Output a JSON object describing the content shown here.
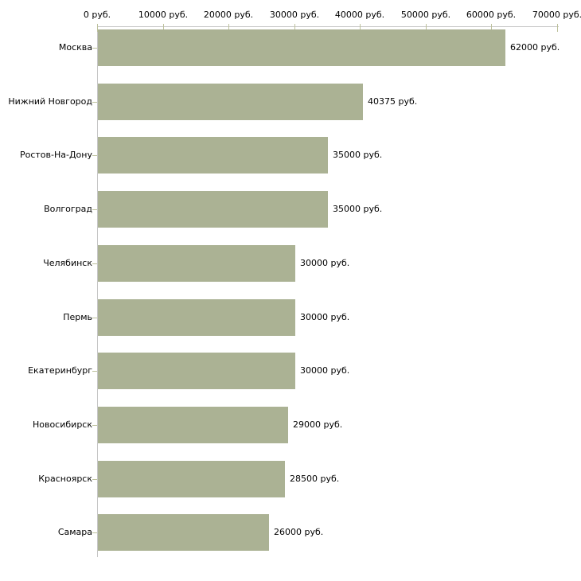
{
  "chart_data": {
    "type": "bar",
    "orientation": "horizontal",
    "categories": [
      "Москва",
      "Нижний Новгород",
      "Ростов-На-Дону",
      "Волгоград",
      "Челябинск",
      "Пермь",
      "Екатеринбург",
      "Новосибирск",
      "Красноярск",
      "Самара"
    ],
    "values": [
      62000,
      40375,
      35000,
      35000,
      30000,
      30000,
      30000,
      29000,
      28500,
      26000
    ],
    "value_labels": [
      "62000 руб.",
      "40375 руб.",
      "35000 руб.",
      "35000 руб.",
      "30000 руб.",
      "30000 руб.",
      "30000 руб.",
      "29000 руб.",
      "28500 руб.",
      "26000 руб."
    ],
    "x_axis": {
      "position": "top",
      "min": 0,
      "max": 70000,
      "tick_values": [
        0,
        10000,
        20000,
        30000,
        40000,
        50000,
        60000,
        70000
      ],
      "tick_labels": [
        "0 руб.",
        "10000 руб.",
        "20000 руб.",
        "30000 руб.",
        "40000 руб.",
        "50000 руб.",
        "60000 руб.",
        "70000 руб."
      ]
    },
    "grid": false,
    "legend": false,
    "colors": {
      "bar": "#abb294",
      "axis_line": "#c6c6c6",
      "tick_mark": "#bdc19c",
      "text": "#000000",
      "background": "#ffffff"
    }
  }
}
